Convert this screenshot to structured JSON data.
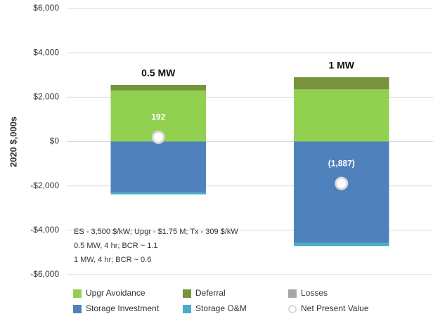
{
  "chart_data": {
    "type": "bar",
    "stacked": true,
    "y_label": "2020 $,000s",
    "categories": [
      "0.5 MW",
      "1 MW"
    ],
    "ylim": [
      -6000,
      6000
    ],
    "yticks": [
      {
        "value": 6000,
        "label": "$6,000"
      },
      {
        "value": 4000,
        "label": "$4,000"
      },
      {
        "value": 2000,
        "label": "$2,000"
      },
      {
        "value": 0,
        "label": "$0"
      },
      {
        "value": -2000,
        "label": "-$2,000"
      },
      {
        "value": -4000,
        "label": "-$4,000"
      },
      {
        "value": -6000,
        "label": "-$6,000"
      }
    ],
    "grid": true,
    "series": [
      {
        "name": "Upgr Avoidance",
        "color": "#92d050",
        "values": [
          2300,
          2350
        ]
      },
      {
        "name": "Deferral",
        "color": "#77933c",
        "values": [
          250,
          550
        ]
      },
      {
        "name": "Losses",
        "color": "#a6a6a6",
        "values": [
          0,
          0
        ]
      },
      {
        "name": "Storage Investment",
        "color": "#4f81bd",
        "values": [
          -2280,
          -4560
        ]
      },
      {
        "name": "Storage O&M",
        "color": "#4bacc6",
        "values": [
          -100,
          -150
        ]
      },
      {
        "name": "Net Present Value",
        "type": "scatter",
        "color": "#d9d9d9",
        "values": [
          192,
          -1887
        ],
        "value_labels": [
          "192",
          "(1,887)"
        ]
      }
    ],
    "annotation": [
      "ES - 3,500 $/kW;  Upgr - $1.75 M; Tx - 309 $/kW",
      "0.5 MW, 4 hr; BCR ~  1.1",
      "1 MW, 4 hr; BCR ~ 0.6"
    ]
  }
}
